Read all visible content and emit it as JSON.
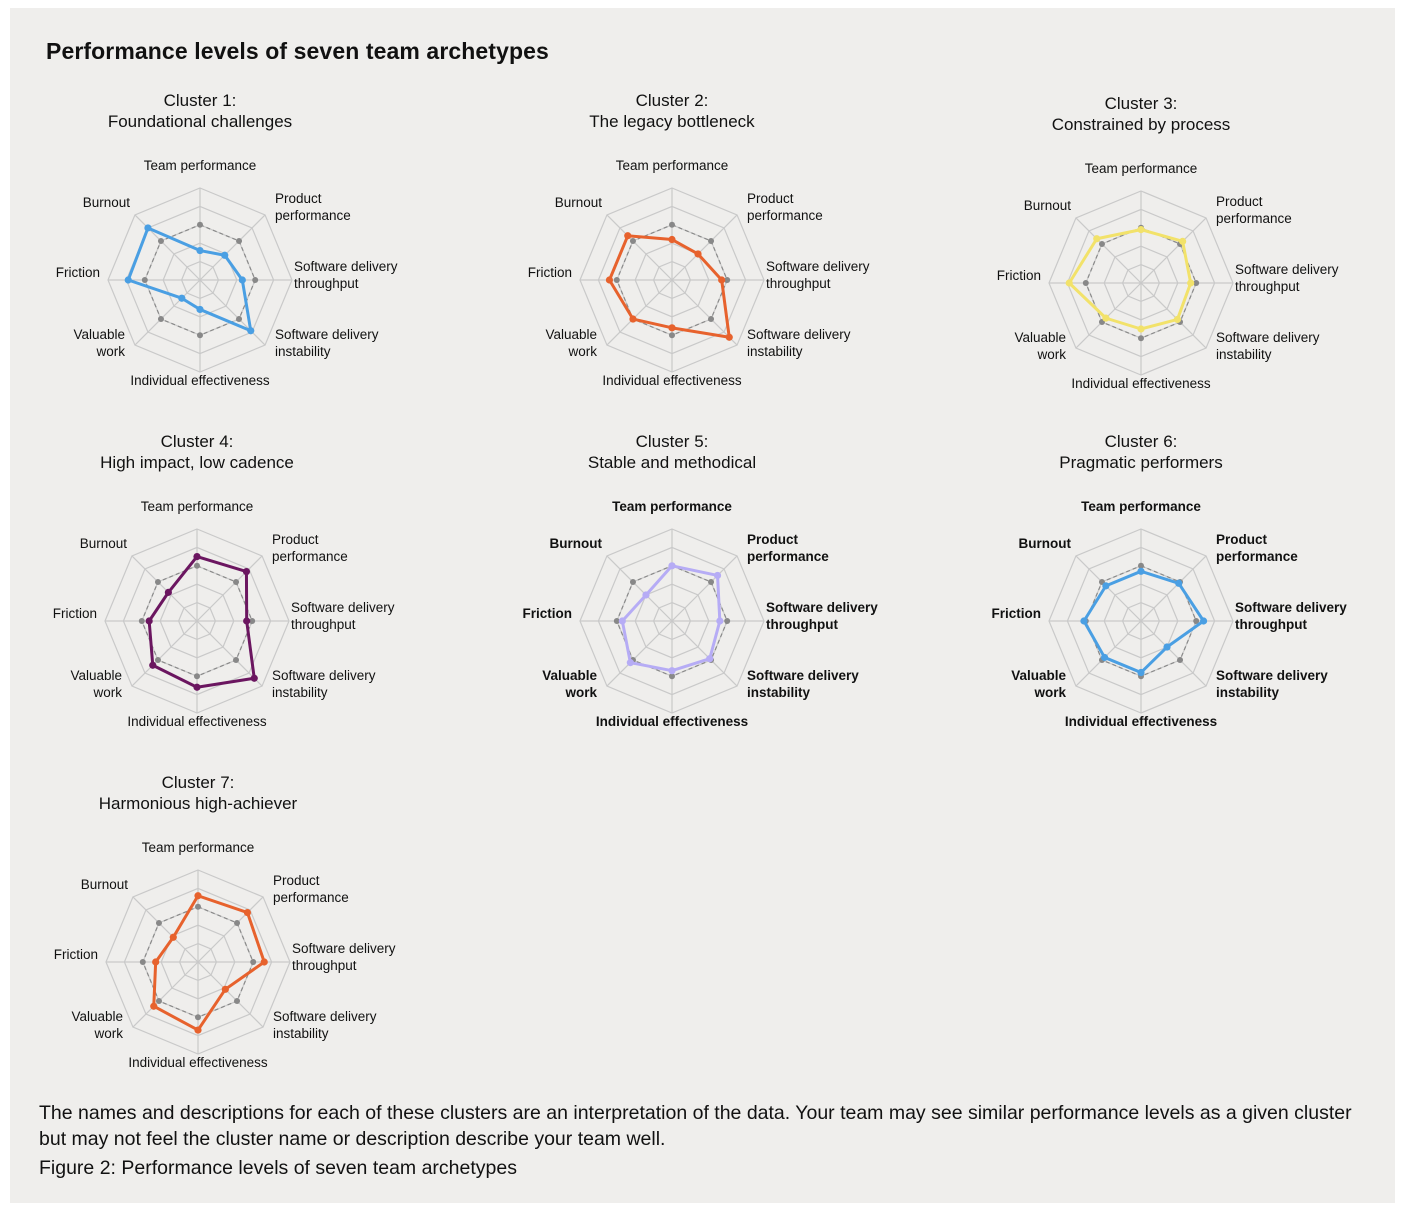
{
  "page": {
    "title": "Performance levels of seven team archetypes",
    "note": "The names and descriptions for each of these clusters are an interpretation of the data. Your team may see similar performance levels as a given cluster but may not feel the cluster name or description describe your team well.",
    "caption": "Figure 2: Performance levels of seven team archetypes"
  },
  "chart_data": [
    {
      "type": "radar",
      "title": "Cluster 1:",
      "subtitle": "Foundational challenges",
      "color": "#4a9fe3",
      "axes": [
        "Team performance",
        "Product performance",
        "Software delivery throughput",
        "Software delivery instability",
        "Individual effectiveness",
        "Valuable work",
        "Friction",
        "Burnout"
      ],
      "values": [
        1.6,
        1.9,
        2.3,
        3.9,
        1.6,
        1.4,
        3.9,
        4.0
      ],
      "reference": [
        3,
        3,
        3,
        3,
        3,
        3,
        3,
        3
      ],
      "rmax": 5
    },
    {
      "type": "radar",
      "title": "Cluster 2:",
      "subtitle": "The legacy bottleneck",
      "color": "#e7622d",
      "axes": [
        "Team performance",
        "Product performance",
        "Software delivery throughput",
        "Software delivery instability",
        "Individual effectiveness",
        "Valuable work",
        "Friction",
        "Burnout"
      ],
      "values": [
        2.2,
        2.0,
        2.7,
        4.4,
        2.6,
        3.0,
        3.4,
        3.4
      ],
      "reference": [
        3,
        3,
        3,
        3,
        3,
        3,
        3,
        3
      ],
      "rmax": 5
    },
    {
      "type": "radar",
      "title": "Cluster 3:",
      "subtitle": "Constrained by process",
      "color": "#f2e26a",
      "axes": [
        "Team performance",
        "Product performance",
        "Software delivery throughput",
        "Software delivery instability",
        "Individual effectiveness",
        "Valuable work",
        "Friction",
        "Burnout"
      ],
      "values": [
        2.9,
        3.2,
        2.7,
        2.8,
        2.5,
        2.7,
        3.9,
        3.4
      ],
      "reference": [
        3,
        3,
        3,
        3,
        3,
        3,
        3,
        3
      ],
      "rmax": 5
    },
    {
      "type": "radar",
      "title": "Cluster 4:",
      "subtitle": "High impact, low cadence",
      "color": "#6b1660",
      "axes": [
        "Team performance",
        "Product performance",
        "Software delivery throughput",
        "Software delivery instability",
        "Individual effectiveness",
        "Valuable work",
        "Friction",
        "Burnout"
      ],
      "values": [
        3.5,
        3.8,
        2.7,
        4.4,
        3.6,
        3.4,
        2.6,
        2.2
      ],
      "reference": [
        3,
        3,
        3,
        3,
        3,
        3,
        3,
        3
      ],
      "rmax": 5
    },
    {
      "type": "radar",
      "title": "Cluster 5:",
      "subtitle": "Stable and methodical",
      "color": "#b6acf5",
      "axes": [
        "Team performance",
        "Product performance",
        "Software delivery throughput",
        "Software delivery instability",
        "Individual effectiveness",
        "Valuable work",
        "Friction",
        "Burnout"
      ],
      "values": [
        3.0,
        3.5,
        2.6,
        2.9,
        2.7,
        3.2,
        2.7,
        2.0
      ],
      "reference": [
        3,
        3,
        3,
        3,
        3,
        3,
        3,
        3
      ],
      "rmax": 5
    },
    {
      "type": "radar",
      "title": "Cluster 6:",
      "subtitle": "Pragmatic performers",
      "color": "#4a9fe3",
      "axes": [
        "Team performance",
        "Product performance",
        "Software delivery throughput",
        "Software delivery instability",
        "Individual effectiveness",
        "Valuable work",
        "Friction",
        "Burnout"
      ],
      "values": [
        2.7,
        2.9,
        3.4,
        2.0,
        2.8,
        2.8,
        3.1,
        2.7
      ],
      "reference": [
        3,
        3,
        3,
        3,
        3,
        3,
        3,
        3
      ],
      "rmax": 5
    },
    {
      "type": "radar",
      "title": "Cluster 7:",
      "subtitle": "Harmonious high-achiever",
      "color": "#e7622d",
      "axes": [
        "Team performance",
        "Product performance",
        "Software delivery throughput",
        "Software delivery instability",
        "Individual effectiveness",
        "Valuable work",
        "Friction",
        "Burnout"
      ],
      "values": [
        3.6,
        3.8,
        3.6,
        2.1,
        3.7,
        3.4,
        2.3,
        1.9
      ],
      "reference": [
        3,
        3,
        3,
        3,
        3,
        3,
        3,
        3
      ],
      "rmax": 5
    }
  ]
}
